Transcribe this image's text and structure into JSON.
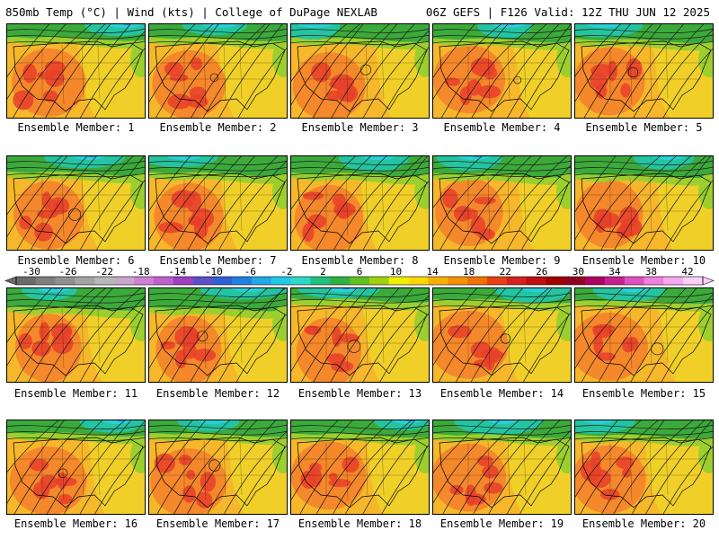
{
  "header": {
    "left": "850mb Temp (°C) | Wind (kts) | College of DuPage NEXLAB",
    "right": "06Z GEFS | F126 Valid: 12Z THU JUN 12 2025"
  },
  "panels": [
    {
      "label": "Ensemble Member: 1"
    },
    {
      "label": "Ensemble Member: 2"
    },
    {
      "label": "Ensemble Member: 3"
    },
    {
      "label": "Ensemble Member: 4"
    },
    {
      "label": "Ensemble Member: 5"
    },
    {
      "label": "Ensemble Member: 6"
    },
    {
      "label": "Ensemble Member: 7"
    },
    {
      "label": "Ensemble Member: 8"
    },
    {
      "label": "Ensemble Member: 9"
    },
    {
      "label": "Ensemble Member: 10"
    },
    {
      "label": "Ensemble Member: 11"
    },
    {
      "label": "Ensemble Member: 12"
    },
    {
      "label": "Ensemble Member: 13"
    },
    {
      "label": "Ensemble Member: 14"
    },
    {
      "label": "Ensemble Member: 15"
    },
    {
      "label": "Ensemble Member: 16"
    },
    {
      "label": "Ensemble Member: 17"
    },
    {
      "label": "Ensemble Member: 18"
    },
    {
      "label": "Ensemble Member: 19"
    },
    {
      "label": "Ensemble Member: 20"
    }
  ],
  "colorbar": {
    "tick_labels": [
      "-30",
      "-26",
      "-22",
      "-18",
      "-14",
      "-10",
      "-6",
      "-2",
      "2",
      "6",
      "10",
      "14",
      "18",
      "22",
      "26",
      "30",
      "34",
      "38",
      "42"
    ],
    "colors": [
      "#6b6b6b",
      "#7f7f7f",
      "#8f8f8f",
      "#a4a4a4",
      "#b8b8b8",
      "#c8a8c8",
      "#d080d8",
      "#c060d0",
      "#a040c0",
      "#6050c8",
      "#3060d8",
      "#2080e0",
      "#20a8e8",
      "#20c8e8",
      "#30d8c8",
      "#20c080",
      "#30b040",
      "#60c020",
      "#a0d010",
      "#f0f000",
      "#f8d800",
      "#f8b000",
      "#f89000",
      "#f07000",
      "#e84010",
      "#d82020",
      "#c01010",
      "#a00000",
      "#900020",
      "#b00060",
      "#c82090",
      "#e050c0",
      "#f080e0",
      "#f8a8f0",
      "#fcd0f8"
    ]
  },
  "map_colors": {
    "hot": "#e8402a",
    "warm": "#f4882a",
    "mild": "#f6b72a",
    "yellow": "#f0d028",
    "green_light": "#9ccf2e",
    "green": "#3caa3a",
    "teal": "#25c4a0",
    "cyan": "#2ad0d8",
    "blue": "#3a78e0"
  }
}
